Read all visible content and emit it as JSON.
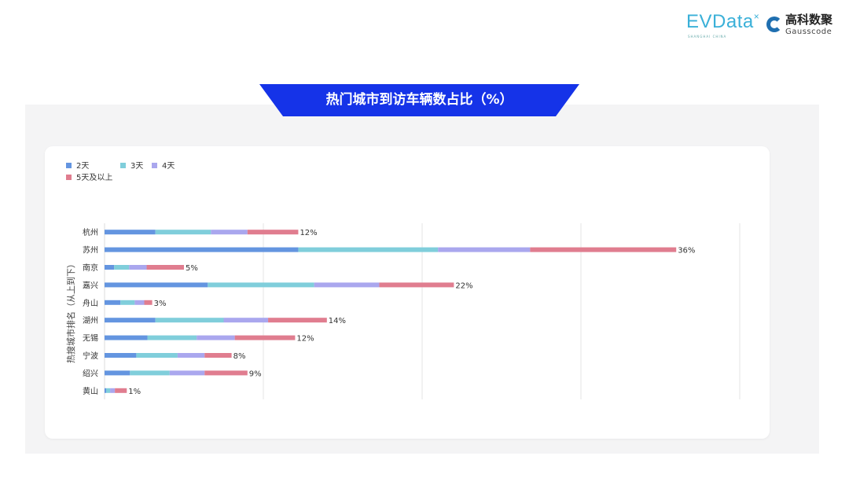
{
  "header": {
    "title": "热门城市到访车辆数占比（%）",
    "banner_color": "#1533e8",
    "logos": [
      {
        "text": "EVData",
        "sub": "SHANGHAI CHINA"
      },
      {
        "text": "高科数聚",
        "sub": "Gausscode"
      }
    ]
  },
  "chart_data": {
    "type": "bar",
    "orientation": "horizontal",
    "stacked": true,
    "title": "热门城市到访车辆数占比（%）",
    "ylabel": "热搜城市排名（从上到下）",
    "xlabel": "",
    "xlim": [
      0,
      40
    ],
    "grid": true,
    "legend_position": "top-left",
    "categories": [
      "杭州",
      "苏州",
      "南京",
      "嘉兴",
      "舟山",
      "湖州",
      "无锡",
      "宁波",
      "绍兴",
      "黄山"
    ],
    "total_labels": [
      "12%",
      "36%",
      "5%",
      "22%",
      "3%",
      "14%",
      "12%",
      "8%",
      "9%",
      "1%"
    ],
    "series": [
      {
        "name": "2天",
        "color": "#6495e0",
        "values": [
          3.2,
          12.2,
          0.6,
          6.5,
          1.0,
          3.2,
          2.7,
          2.0,
          1.6,
          0.1
        ]
      },
      {
        "name": "3天",
        "color": "#80cedb",
        "values": [
          3.5,
          8.8,
          0.95,
          6.7,
          0.9,
          4.3,
          3.1,
          2.6,
          2.5,
          0.25
        ]
      },
      {
        "name": "4天",
        "color": "#aaa7ee",
        "values": [
          2.3,
          5.8,
          1.1,
          4.1,
          0.6,
          2.8,
          2.4,
          1.7,
          2.2,
          0.3
        ]
      },
      {
        "name": "5天及以上",
        "color": "#e07d8f",
        "values": [
          3.2,
          9.2,
          2.35,
          4.7,
          0.5,
          3.7,
          3.8,
          1.7,
          2.7,
          0.75
        ]
      }
    ]
  }
}
